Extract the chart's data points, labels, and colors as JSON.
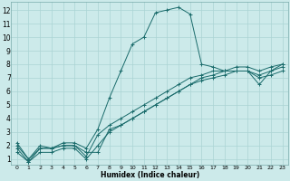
{
  "xlabel": "Humidex (Indice chaleur)",
  "bg_color": "#cceaea",
  "grid_color": "#aad4d4",
  "line_color": "#1a6b6b",
  "xlim": [
    -0.5,
    23.5
  ],
  "ylim": [
    0.6,
    12.6
  ],
  "xticks": [
    0,
    1,
    2,
    3,
    4,
    5,
    6,
    7,
    8,
    9,
    10,
    11,
    12,
    13,
    14,
    15,
    16,
    17,
    18,
    19,
    20,
    21,
    22,
    23
  ],
  "yticks": [
    1,
    2,
    3,
    4,
    5,
    6,
    7,
    8,
    9,
    10,
    11,
    12
  ],
  "line1_x": [
    0,
    1,
    2,
    3,
    4,
    5,
    6,
    7,
    8,
    9,
    10,
    11,
    12,
    13,
    14,
    15,
    16,
    17,
    18,
    19,
    20,
    21,
    22,
    23
  ],
  "line1_y": [
    2.2,
    1.0,
    2.0,
    1.8,
    2.2,
    2.2,
    1.8,
    3.2,
    5.5,
    7.5,
    9.5,
    10.0,
    11.8,
    12.0,
    12.2,
    11.7,
    8.0,
    7.8,
    7.5,
    7.5,
    7.5,
    6.5,
    7.5,
    8.0
  ],
  "line2_x": [
    0,
    1,
    2,
    3,
    4,
    5,
    6,
    7,
    8,
    9,
    10,
    11,
    12,
    13,
    14,
    15,
    16,
    17,
    18,
    19,
    20,
    21,
    22,
    23
  ],
  "line2_y": [
    2.0,
    1.0,
    1.8,
    1.8,
    2.0,
    2.0,
    1.5,
    1.5,
    3.2,
    3.5,
    4.0,
    4.5,
    5.0,
    5.5,
    6.0,
    6.5,
    7.0,
    7.2,
    7.5,
    7.8,
    7.8,
    7.5,
    7.8,
    8.0
  ],
  "line3_x": [
    0,
    1,
    2,
    3,
    4,
    5,
    6,
    7,
    8,
    9,
    10,
    11,
    12,
    13,
    14,
    15,
    16,
    17,
    18,
    19,
    20,
    21,
    22,
    23
  ],
  "line3_y": [
    1.8,
    0.8,
    1.8,
    1.8,
    2.0,
    2.0,
    1.2,
    2.8,
    3.5,
    4.0,
    4.5,
    5.0,
    5.5,
    6.0,
    6.5,
    7.0,
    7.2,
    7.5,
    7.5,
    7.5,
    7.5,
    7.2,
    7.5,
    7.8
  ],
  "line4_x": [
    0,
    1,
    2,
    3,
    4,
    5,
    6,
    7,
    8,
    9,
    10,
    11,
    12,
    13,
    14,
    15,
    16,
    17,
    18,
    19,
    20,
    21,
    22,
    23
  ],
  "line4_y": [
    1.5,
    0.8,
    1.5,
    1.5,
    1.8,
    1.8,
    1.0,
    2.0,
    3.0,
    3.5,
    4.0,
    4.5,
    5.0,
    5.5,
    6.0,
    6.5,
    6.8,
    7.0,
    7.2,
    7.5,
    7.5,
    7.0,
    7.2,
    7.5
  ]
}
